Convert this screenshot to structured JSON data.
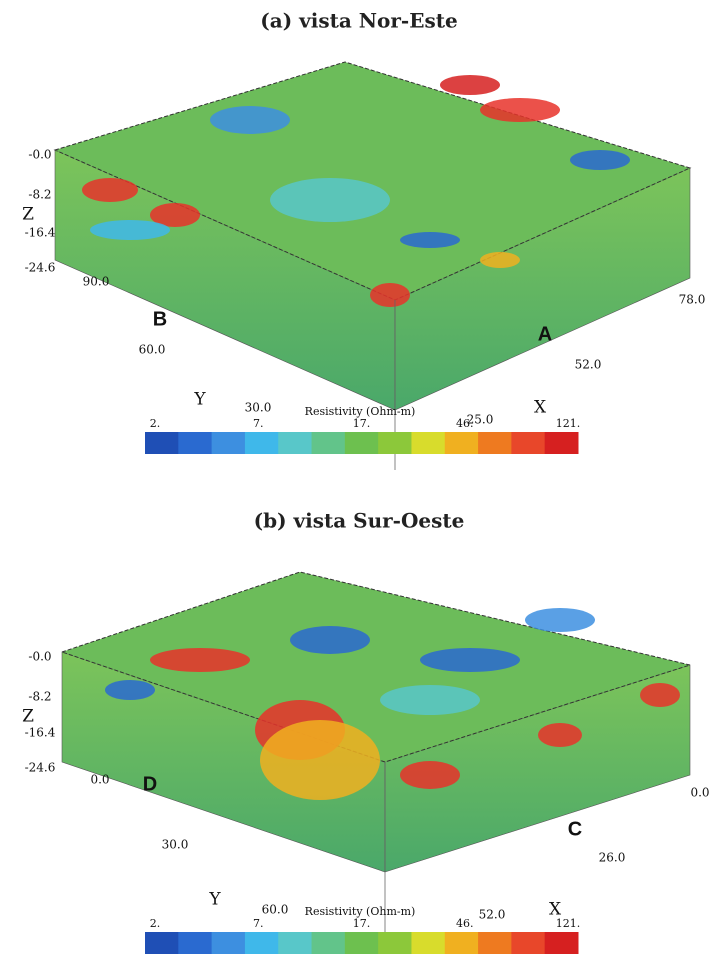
{
  "panels": [
    {
      "title": "(a) vista Nor-Este",
      "axis_labels": {
        "z": "Z",
        "y": "Y",
        "x": "X"
      },
      "z_ticks": [
        "-0.0",
        "-8.2",
        "-16.4",
        "-24.6"
      ],
      "y_ticks": [
        "90.0",
        "60.0",
        "30.0"
      ],
      "x_ticks": [
        "25.0",
        "52.0",
        "78.0"
      ],
      "markers": [
        "B",
        "A"
      ],
      "colorbar": {
        "title": "Resistivity (Ohm-m)",
        "labels": [
          "2.",
          "7.",
          "17.",
          "46.",
          "121."
        ]
      }
    },
    {
      "title": "(b) vista Sur-Oeste",
      "axis_labels": {
        "z": "Z",
        "y": "Y",
        "x": "X"
      },
      "z_ticks": [
        "-0.0",
        "-8.2",
        "-16.4",
        "-24.6"
      ],
      "y_ticks": [
        "0.0",
        "30.0",
        "60.0"
      ],
      "x_ticks": [
        "0.0",
        "26.0",
        "52.0"
      ],
      "markers": [
        "D",
        "C"
      ],
      "colorbar": {
        "title": "Resistivity (Ohm-m)",
        "labels": [
          "2.",
          "7.",
          "17.",
          "46.",
          "121."
        ]
      }
    }
  ],
  "colorbar_colors": [
    "#1f4fb5",
    "#2a6ad0",
    "#3d8fe0",
    "#3fb8ea",
    "#58c7c9",
    "#62c48a",
    "#6dc04f",
    "#8cc83a",
    "#d8dc2c",
    "#f0b020",
    "#ee7a20",
    "#e8472a",
    "#d62020"
  ]
}
